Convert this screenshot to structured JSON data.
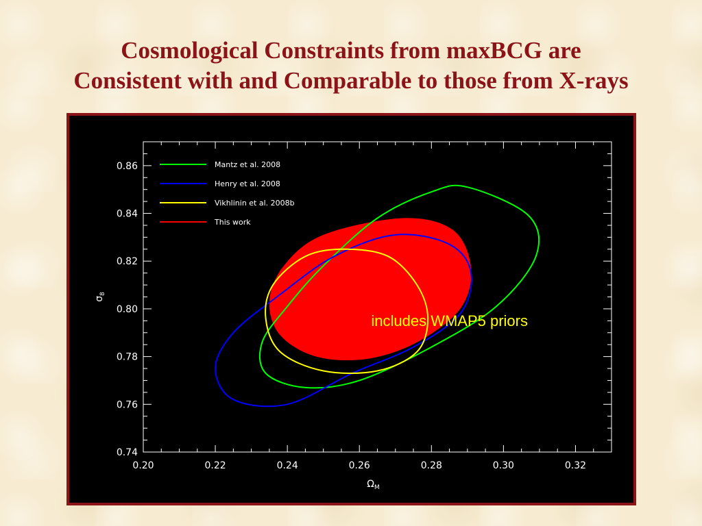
{
  "slide": {
    "title_line1": "Cosmological Constraints from maxBCG are",
    "title_line2": "Consistent with and Comparable to those from X-rays",
    "title_color": "#8b1418",
    "annotation": "includes WMAP5 priors",
    "annotation_color": "#ffff00"
  },
  "chart_data": {
    "type": "contour",
    "title": "",
    "xlabel": "Ω",
    "xlabel_sub": "M",
    "ylabel": "σ",
    "ylabel_sub": "8",
    "xlim": [
      0.2,
      0.33
    ],
    "ylim": [
      0.74,
      0.87
    ],
    "xticks": [
      "0.20",
      "0.22",
      "0.24",
      "0.26",
      "0.28",
      "0.30",
      "0.32"
    ],
    "yticks": [
      "0.74",
      "0.76",
      "0.78",
      "0.80",
      "0.82",
      "0.84",
      "0.86"
    ],
    "legend_position": "top-left",
    "series": [
      {
        "name": "Mantz et al. 2008",
        "color": "#00ff00",
        "fill": false,
        "points": [
          [
            0.29,
            0.851
          ],
          [
            0.307,
            0.839
          ],
          [
            0.309,
            0.822
          ],
          [
            0.298,
            0.801
          ],
          [
            0.28,
            0.784
          ],
          [
            0.26,
            0.77
          ],
          [
            0.245,
            0.767
          ],
          [
            0.234,
            0.773
          ],
          [
            0.233,
            0.786
          ],
          [
            0.24,
            0.801
          ],
          [
            0.25,
            0.818
          ],
          [
            0.265,
            0.838
          ],
          [
            0.28,
            0.849
          ]
        ]
      },
      {
        "name": "Henry et al. 2008",
        "color": "#0000ff",
        "fill": false,
        "points": [
          [
            0.27,
            0.831
          ],
          [
            0.285,
            0.827
          ],
          [
            0.291,
            0.815
          ],
          [
            0.288,
            0.798
          ],
          [
            0.275,
            0.784
          ],
          [
            0.258,
            0.773
          ],
          [
            0.24,
            0.76
          ],
          [
            0.225,
            0.762
          ],
          [
            0.22,
            0.775
          ],
          [
            0.225,
            0.79
          ],
          [
            0.238,
            0.806
          ],
          [
            0.253,
            0.822
          ]
        ]
      },
      {
        "name": "Vikhlinin et al. 2008b",
        "color": "#ffff00",
        "fill": false,
        "points": [
          [
            0.256,
            0.825
          ],
          [
            0.268,
            0.822
          ],
          [
            0.276,
            0.81
          ],
          [
            0.279,
            0.796
          ],
          [
            0.276,
            0.782
          ],
          [
            0.265,
            0.774
          ],
          [
            0.25,
            0.774
          ],
          [
            0.238,
            0.782
          ],
          [
            0.234,
            0.796
          ],
          [
            0.236,
            0.81
          ],
          [
            0.245,
            0.822
          ]
        ]
      },
      {
        "name": "This work",
        "color": "#ff0000",
        "fill": true,
        "points": [
          [
            0.272,
            0.838
          ],
          [
            0.286,
            0.833
          ],
          [
            0.291,
            0.817
          ],
          [
            0.288,
            0.8
          ],
          [
            0.276,
            0.786
          ],
          [
            0.262,
            0.779
          ],
          [
            0.248,
            0.78
          ],
          [
            0.238,
            0.789
          ],
          [
            0.235,
            0.803
          ],
          [
            0.239,
            0.818
          ],
          [
            0.25,
            0.831
          ]
        ]
      }
    ]
  }
}
